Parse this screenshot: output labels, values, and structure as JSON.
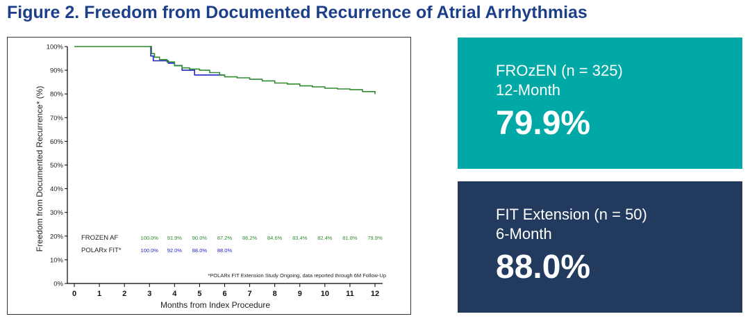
{
  "figure": {
    "title": "Figure 2. Freedom from Documented Recurrence of Atrial Arrhythmias"
  },
  "colors": {
    "title": "#1d3f8a",
    "frozen_series": "#2e8b2e",
    "polarx_series": "#2222cc",
    "card_frozen": "#00a9a5",
    "card_fit": "#223a5e"
  },
  "chart_data": {
    "type": "line",
    "title": "",
    "xlabel": "Months from Index Procedure",
    "ylabel": "Freedom from Documented Recurrence* (%)",
    "xlim": [
      0,
      12
    ],
    "ylim": [
      0,
      100
    ],
    "x_ticks": [
      0,
      1,
      2,
      3,
      4,
      5,
      6,
      7,
      8,
      9,
      10,
      11,
      12
    ],
    "y_ticks": [
      0,
      10,
      20,
      30,
      40,
      50,
      60,
      70,
      80,
      90,
      100
    ],
    "y_tick_labels": [
      "0%",
      "10%",
      "20%",
      "30%",
      "40%",
      "50%",
      "60%",
      "70%",
      "80%",
      "90%",
      "100%"
    ],
    "grid": false,
    "series": [
      {
        "name": "FROZEN AF",
        "color": "#2e8b2e",
        "points": [
          [
            0,
            100
          ],
          [
            3,
            100
          ],
          [
            3.08,
            97
          ],
          [
            3.2,
            95.5
          ],
          [
            3.4,
            94.5
          ],
          [
            3.7,
            93.5
          ],
          [
            4,
            91.9
          ],
          [
            4.3,
            91
          ],
          [
            4.6,
            90.5
          ],
          [
            5,
            90
          ],
          [
            5.4,
            89
          ],
          [
            5.8,
            88
          ],
          [
            6,
            87.2
          ],
          [
            6.5,
            86.8
          ],
          [
            7,
            86.2
          ],
          [
            7.5,
            85.5
          ],
          [
            8,
            84.6
          ],
          [
            8.5,
            84.2
          ],
          [
            9,
            83.4
          ],
          [
            9.5,
            83
          ],
          [
            10,
            82.4
          ],
          [
            10.5,
            82.1
          ],
          [
            11,
            81.8
          ],
          [
            11.5,
            81
          ],
          [
            12,
            79.9
          ]
        ]
      },
      {
        "name": "POLARx FIT*",
        "color": "#2222cc",
        "points": [
          [
            3,
            100
          ],
          [
            3.05,
            96
          ],
          [
            3.15,
            94
          ],
          [
            3.7,
            94
          ],
          [
            3.75,
            93
          ],
          [
            4,
            92
          ],
          [
            4.25,
            92
          ],
          [
            4.3,
            90
          ],
          [
            4.75,
            90
          ],
          [
            4.8,
            88
          ],
          [
            6,
            88
          ]
        ]
      }
    ],
    "at_risk": {
      "x": [
        3,
        4,
        5,
        6,
        7,
        8,
        9,
        10,
        11,
        12
      ],
      "rows": [
        {
          "label": "FROZEN AF",
          "values": [
            "100.0%",
            "91.9%",
            "90.0%",
            "87.2%",
            "86.2%",
            "84.6%",
            "83.4%",
            "82.4%",
            "81.8%",
            "79.9%"
          ]
        },
        {
          "label": "POLARx FIT*",
          "values": [
            "100.0%",
            "92.0%",
            "88.0%",
            "88.0%"
          ]
        }
      ]
    },
    "footnote": "*POLARx FIT Extension Study Ongoing, data reported through 6M Follow-Up"
  },
  "cards": [
    {
      "line1": "FROzEN (n = 325)",
      "line2": "12-Month",
      "value": "79.9%"
    },
    {
      "line1": "FIT Extension (n = 50)",
      "line2": "6-Month",
      "value": "88.0%"
    }
  ]
}
